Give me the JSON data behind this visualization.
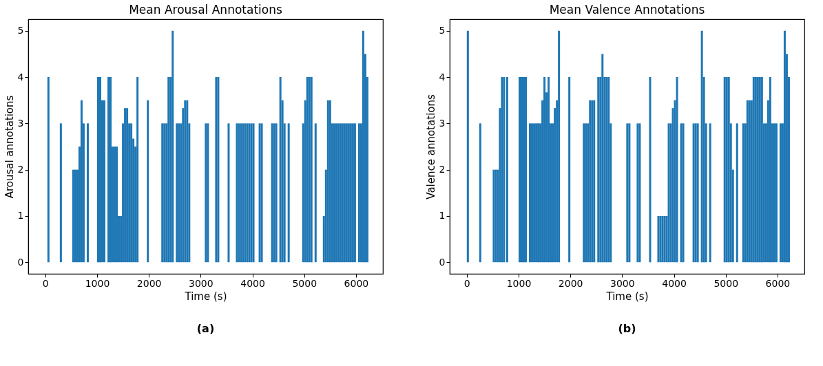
{
  "chart_data": [
    {
      "type": "bar",
      "title": "Mean Arousal Annotations",
      "xlabel": "Time (s)",
      "ylabel": "Arousal annotations",
      "annotations": [
        "(a)"
      ],
      "x": [
        60,
        300,
        540,
        580,
        620,
        660,
        700,
        740,
        820,
        1020,
        1060,
        1100,
        1140,
        1220,
        1260,
        1300,
        1340,
        1380,
        1420,
        1460,
        1500,
        1540,
        1580,
        1620,
        1660,
        1700,
        1740,
        1780,
        1980,
        2260,
        2300,
        2340,
        2380,
        2420,
        2460,
        2540,
        2580,
        2620,
        2660,
        2700,
        2740,
        2780,
        3100,
        3140,
        3300,
        3340,
        3540,
        3700,
        3740,
        3780,
        3820,
        3860,
        3900,
        3940,
        3980,
        4020,
        4140,
        4180,
        4380,
        4420,
        4460,
        4540,
        4580,
        4620,
        4700,
        4980,
        5020,
        5060,
        5100,
        5140,
        5220,
        5380,
        5420,
        5460,
        5500,
        5540,
        5580,
        5620,
        5660,
        5700,
        5740,
        5780,
        5820,
        5860,
        5900,
        5940,
        5980,
        6060,
        6100,
        6140,
        6180,
        6220
      ],
      "values": [
        4,
        3,
        2,
        2,
        2,
        2.5,
        3.5,
        3,
        3,
        4,
        4,
        3.5,
        3.5,
        4,
        4,
        2.5,
        2.5,
        2.5,
        1,
        1,
        3,
        3.33,
        3.33,
        3,
        3,
        2.67,
        2.5,
        4,
        3.5,
        3,
        3,
        3,
        4,
        4,
        5,
        3,
        3,
        3,
        3.33,
        3.5,
        3.5,
        3,
        3,
        3,
        4,
        4,
        3,
        3,
        3,
        3,
        3,
        3,
        3,
        3,
        3,
        3,
        3,
        3,
        3,
        3,
        3,
        4,
        3.5,
        3,
        3,
        3,
        3.5,
        4,
        4,
        4,
        3,
        1,
        2,
        3.5,
        3.5,
        3,
        3,
        3,
        3,
        3,
        3,
        3,
        3,
        3,
        3,
        3,
        3,
        3,
        3,
        5,
        4.5,
        4
      ],
      "color": "#1f77b4",
      "xlim": [
        -330,
        6520
      ],
      "xticks": [
        0,
        1000,
        2000,
        3000,
        4000,
        5000,
        6000
      ],
      "ylim": [
        -0.25,
        5.25
      ],
      "yticks": [
        0,
        1,
        2,
        3,
        4,
        5
      ],
      "grid": false
    },
    {
      "type": "bar",
      "title": "Mean Valence Annotations",
      "xlabel": "Time (s)",
      "ylabel": "Valence annotations",
      "annotations": [
        "(b)"
      ],
      "x": [
        20,
        260,
        520,
        560,
        600,
        640,
        680,
        720,
        780,
        1020,
        1060,
        1100,
        1140,
        1220,
        1260,
        1300,
        1340,
        1380,
        1420,
        1460,
        1500,
        1540,
        1580,
        1620,
        1660,
        1700,
        1740,
        1780,
        1980,
        2260,
        2300,
        2340,
        2380,
        2420,
        2460,
        2540,
        2580,
        2620,
        2660,
        2700,
        2740,
        2780,
        3100,
        3140,
        3300,
        3340,
        3540,
        3700,
        3740,
        3780,
        3820,
        3860,
        3900,
        3940,
        3980,
        4020,
        4060,
        4140,
        4180,
        4380,
        4420,
        4460,
        4540,
        4580,
        4620,
        4700,
        4980,
        5020,
        5060,
        5100,
        5140,
        5220,
        5340,
        5380,
        5420,
        5460,
        5500,
        5540,
        5580,
        5620,
        5660,
        5700,
        5740,
        5780,
        5820,
        5860,
        5900,
        5940,
        5980,
        6060,
        6100,
        6140,
        6180,
        6220
      ],
      "values": [
        5,
        3,
        2,
        2,
        2,
        3.33,
        4,
        4,
        4,
        4,
        4,
        4,
        4,
        3,
        3,
        3,
        3,
        3,
        3,
        3.5,
        4,
        3.67,
        4,
        3,
        3,
        3.33,
        3.5,
        5,
        4,
        3,
        3,
        3,
        3.5,
        3.5,
        3.5,
        4,
        4,
        4.5,
        4,
        4,
        4,
        3,
        3,
        3,
        3,
        3,
        4,
        1,
        1,
        1,
        1,
        1,
        3,
        3,
        3.33,
        3.5,
        4,
        3,
        3,
        3,
        3,
        3,
        5,
        4,
        3,
        3,
        4,
        4,
        4,
        3,
        2,
        3,
        3,
        3,
        3.5,
        3.5,
        3.5,
        4,
        4,
        4,
        4,
        4,
        3,
        3,
        3.5,
        4,
        3,
        3,
        3,
        3,
        3,
        5,
        4.5,
        4
      ],
      "color": "#1f77b4",
      "xlim": [
        -330,
        6520
      ],
      "xticks": [
        0,
        1000,
        2000,
        3000,
        4000,
        5000,
        6000
      ],
      "ylim": [
        -0.25,
        5.25
      ],
      "yticks": [
        0,
        1,
        2,
        3,
        4,
        5
      ],
      "grid": false
    }
  ]
}
